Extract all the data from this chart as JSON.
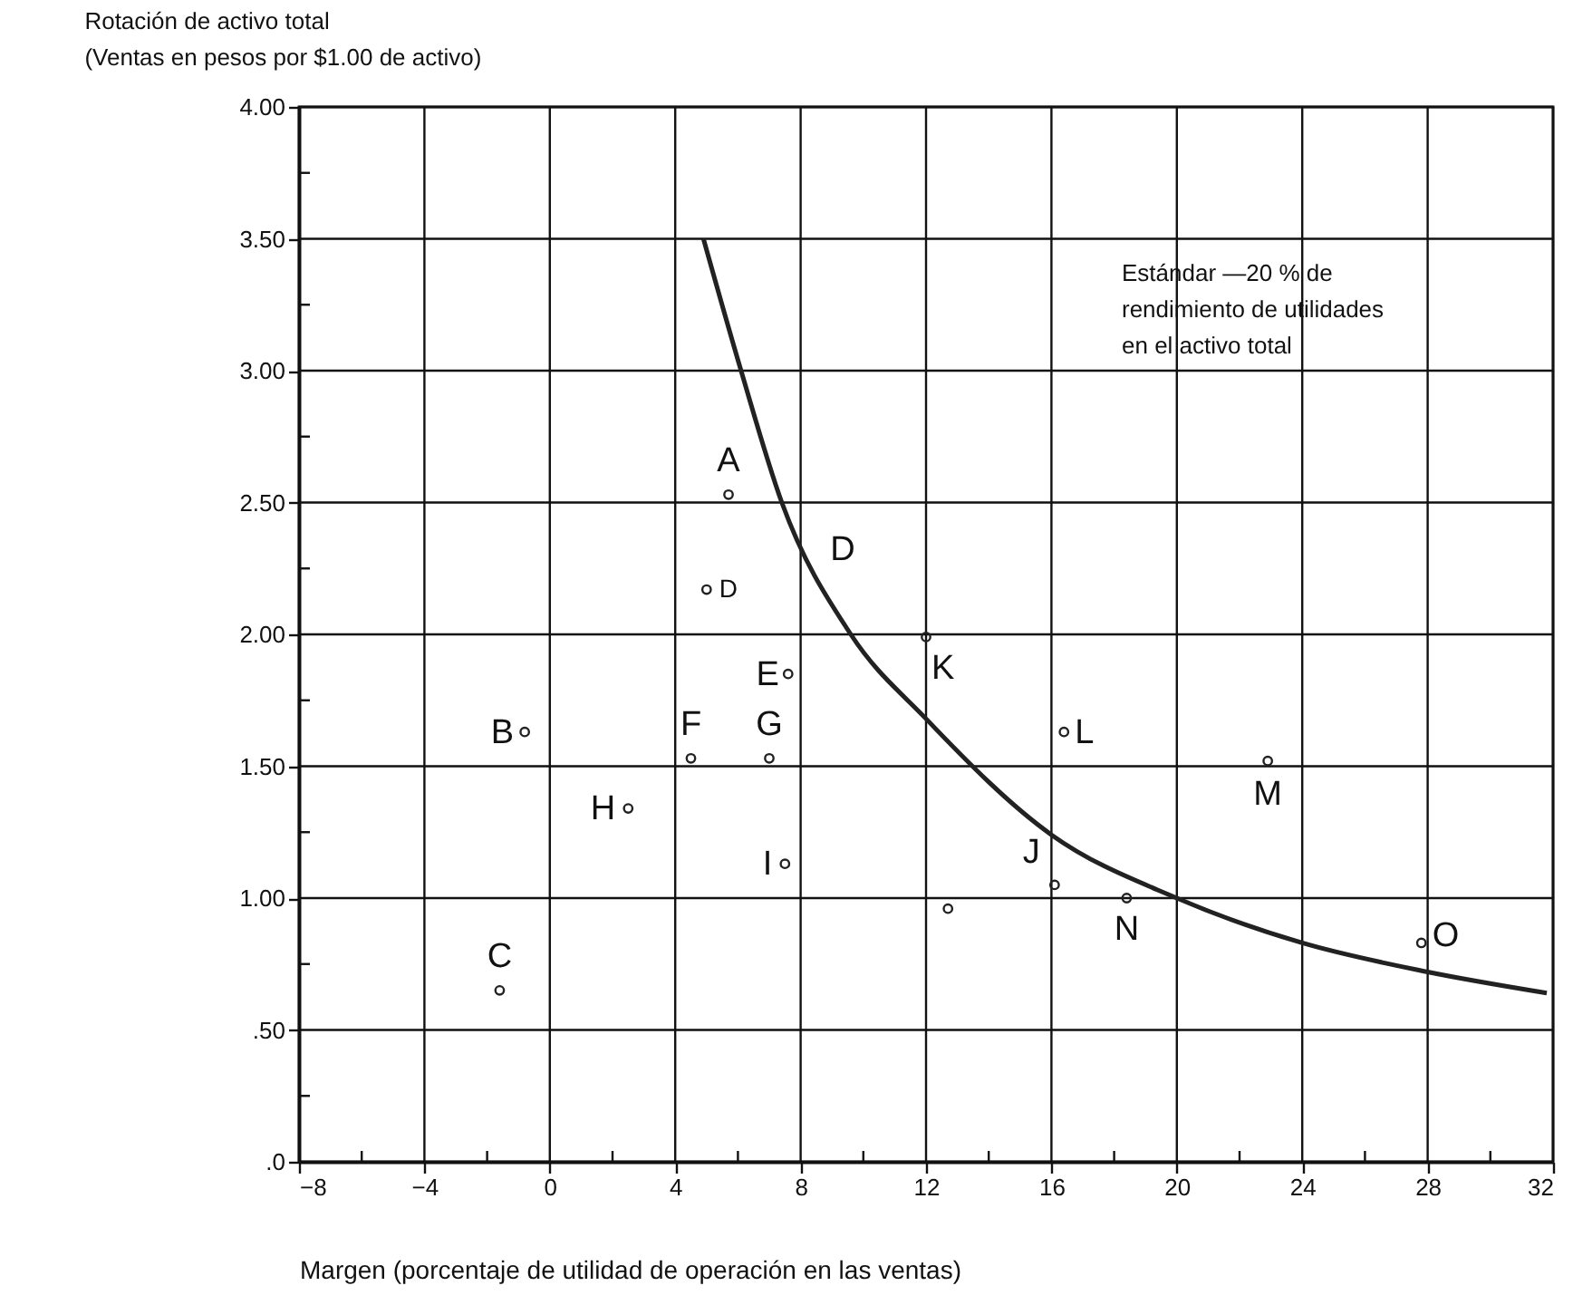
{
  "chart_data": {
    "type": "scatter",
    "title": "Rotación de activo total\n(Ventas en pesos por $1.00 de activo)",
    "xlabel": "Margen (porcentaje de utilidad de operación en las ventas)",
    "xlim": [
      -8,
      32
    ],
    "ylim": [
      0,
      4
    ],
    "xticks": [
      {
        "value": -8,
        "label": "−8"
      },
      {
        "value": -6,
        "label": null
      },
      {
        "value": -4,
        "label": "−4"
      },
      {
        "value": -2,
        "label": null
      },
      0,
      {
        "value": 2,
        "label": null
      },
      4,
      {
        "value": 6,
        "label": null
      },
      8,
      {
        "value": 10,
        "label": null
      },
      12,
      {
        "value": 14,
        "label": null
      },
      16,
      {
        "value": 18,
        "label": null
      },
      20,
      {
        "value": 22,
        "label": null
      },
      24,
      {
        "value": 26,
        "label": null
      },
      28,
      {
        "value": 30,
        "label": null
      },
      32
    ],
    "yticks": [
      {
        "value": 0,
        "label": ".0"
      },
      {
        "value": 0.25,
        "label": null
      },
      {
        "value": 0.5,
        "label": ".50"
      },
      {
        "value": 0.75,
        "label": null
      },
      {
        "value": 1,
        "label": "1.00"
      },
      {
        "value": 1.25,
        "label": null
      },
      {
        "value": 1.5,
        "label": "1.50"
      },
      {
        "value": 1.75,
        "label": null
      },
      {
        "value": 2,
        "label": "2.00"
      },
      {
        "value": 2.25,
        "label": null
      },
      {
        "value": 2.5,
        "label": "2.50"
      },
      {
        "value": 2.75,
        "label": null
      },
      {
        "value": 3,
        "label": "3.00"
      },
      {
        "value": 3.25,
        "label": null
      },
      {
        "value": 3.5,
        "label": "3.50"
      },
      {
        "value": 3.75,
        "label": null
      },
      {
        "value": 4,
        "label": "4.00"
      }
    ],
    "grid": true,
    "series": [
      {
        "type": "line",
        "color": "#222222",
        "x": [
          4.9,
          6.1,
          7.4,
          9.6,
          12,
          16,
          20,
          24,
          28,
          31.8
        ],
        "values": [
          3.5,
          3.0,
          2.5,
          2.0,
          1.68,
          1.24,
          1.0,
          0.83,
          0.72,
          0.64
        ]
      },
      {
        "color": "#222222",
        "marker": "circle",
        "x": [
          5.7,
          5.0,
          7.6,
          -0.8,
          4.5,
          7.0,
          2.5,
          7.5,
          -1.6,
          12.0,
          16.4,
          22.9,
          16.1,
          12.7,
          18.4,
          27.8
        ],
        "values": [
          2.53,
          2.17,
          1.85,
          1.63,
          1.53,
          1.53,
          1.34,
          1.13,
          0.65,
          1.99,
          1.63,
          1.52,
          1.05,
          0.96,
          1.0,
          0.83
        ],
        "value_labels": [
          "A",
          "D",
          "E",
          "B",
          "F",
          "G",
          "H",
          "I",
          "C",
          "K",
          "L",
          "M",
          "J",
          null,
          "N",
          "O"
        ]
      }
    ],
    "annotations": [
      "D",
      "Estándar —20 % de\nrendimiento de utilidades\nen el activo total"
    ]
  }
}
